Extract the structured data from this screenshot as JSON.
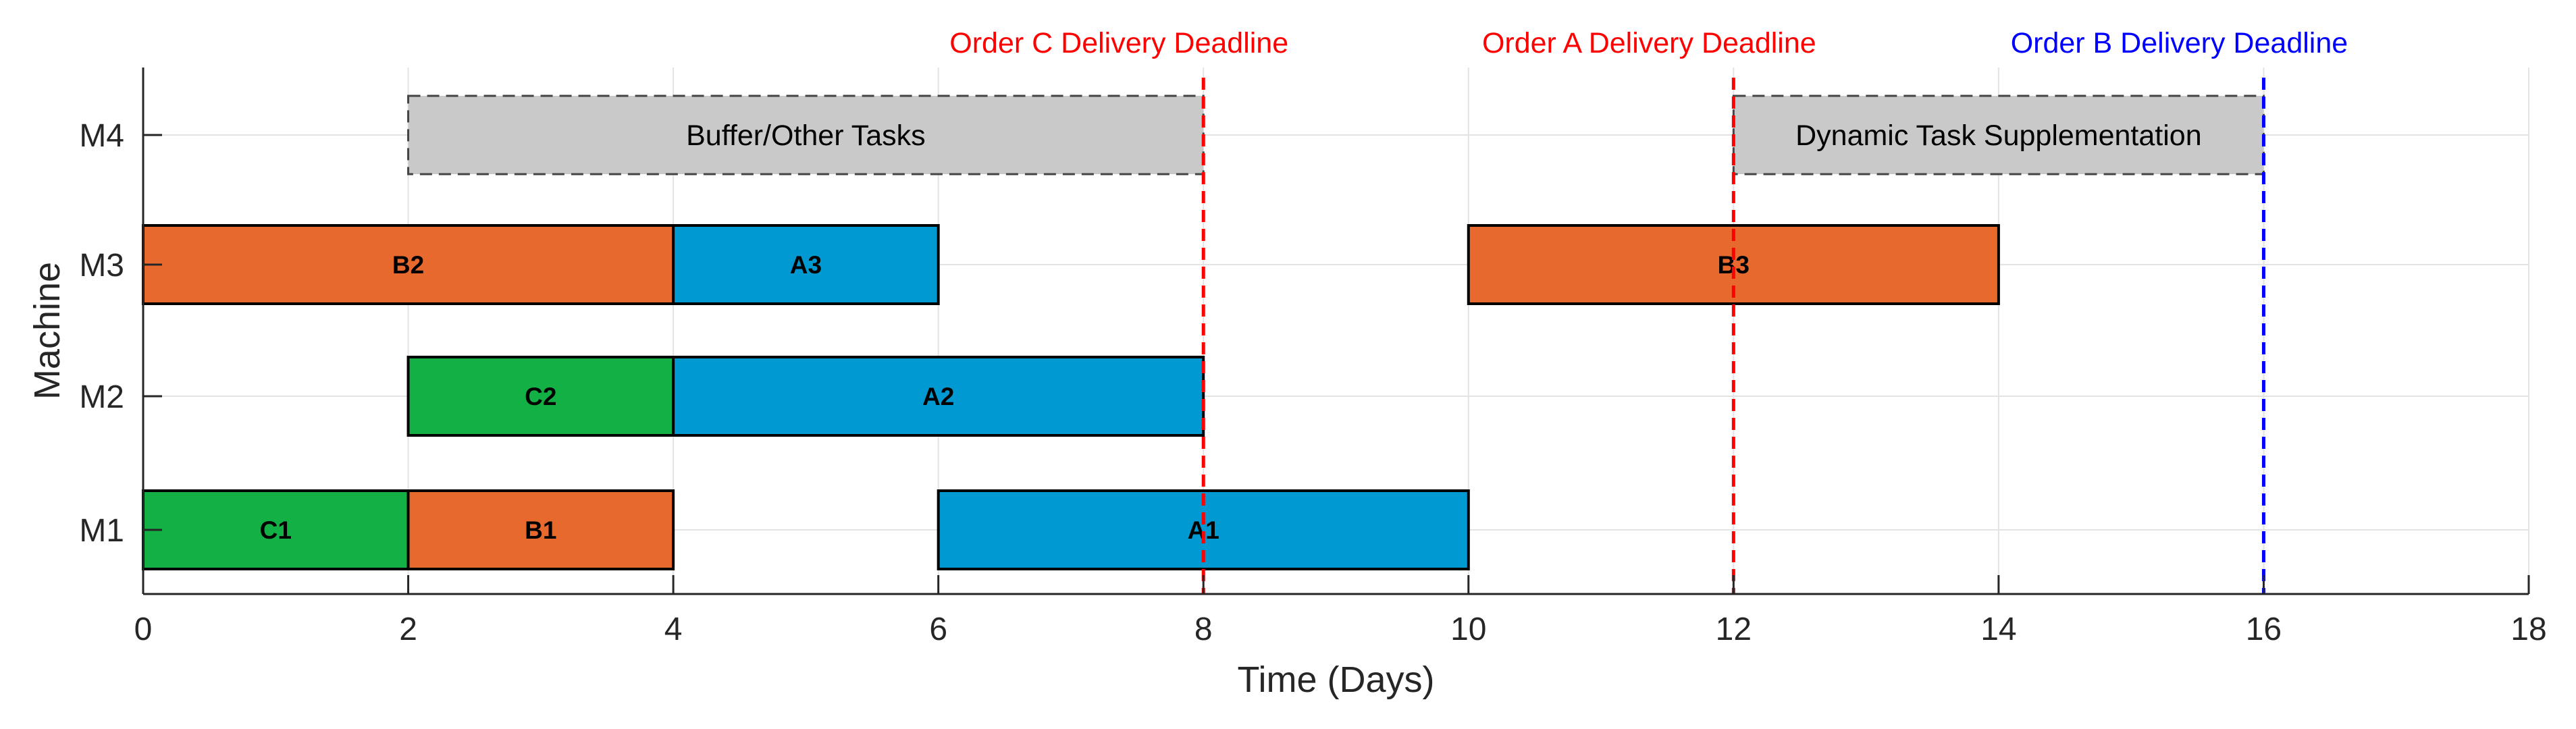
{
  "chart_data": {
    "type": "gantt",
    "xlabel": "Time (Days)",
    "ylabel": "Machine",
    "xlim": [
      0,
      18
    ],
    "xticks": [
      0,
      2,
      4,
      6,
      8,
      10,
      12,
      14,
      16,
      18
    ],
    "machines": [
      "M1",
      "M2",
      "M3",
      "M4"
    ],
    "grid": true,
    "colors": {
      "A": "#0099D1",
      "B": "#E8692E",
      "C": "#13B145",
      "buffer": "#C9C9C9",
      "deadline_red": "#FF0000",
      "deadline_blue": "#0000FF"
    },
    "tasks": [
      {
        "machine": "M1",
        "label": "C1",
        "order": "C",
        "start": 0,
        "end": 2
      },
      {
        "machine": "M1",
        "label": "B1",
        "order": "B",
        "start": 2,
        "end": 4
      },
      {
        "machine": "M1",
        "label": "A1",
        "order": "A",
        "start": 6,
        "end": 10
      },
      {
        "machine": "M2",
        "label": "C2",
        "order": "C",
        "start": 2,
        "end": 4
      },
      {
        "machine": "M2",
        "label": "A2",
        "order": "A",
        "start": 4,
        "end": 8
      },
      {
        "machine": "M3",
        "label": "B2",
        "order": "B",
        "start": 0,
        "end": 4
      },
      {
        "machine": "M3",
        "label": "A3",
        "order": "A",
        "start": 4,
        "end": 6
      },
      {
        "machine": "M3",
        "label": "B3",
        "order": "B",
        "start": 10,
        "end": 14
      }
    ],
    "blocks": [
      {
        "machine": "M4",
        "label": "Buffer/Other Tasks",
        "start": 2,
        "end": 8
      },
      {
        "machine": "M4",
        "label": "Dynamic Task Supplementation",
        "start": 12,
        "end": 16
      }
    ],
    "deadlines": [
      {
        "label": "Order C Delivery Deadline",
        "x": 8,
        "color": "#FF0000"
      },
      {
        "label": "Order A Delivery Deadline",
        "x": 12,
        "color": "#FF0000"
      },
      {
        "label": "Order B Delivery Deadline",
        "x": 16,
        "color": "#0000FF"
      }
    ]
  }
}
